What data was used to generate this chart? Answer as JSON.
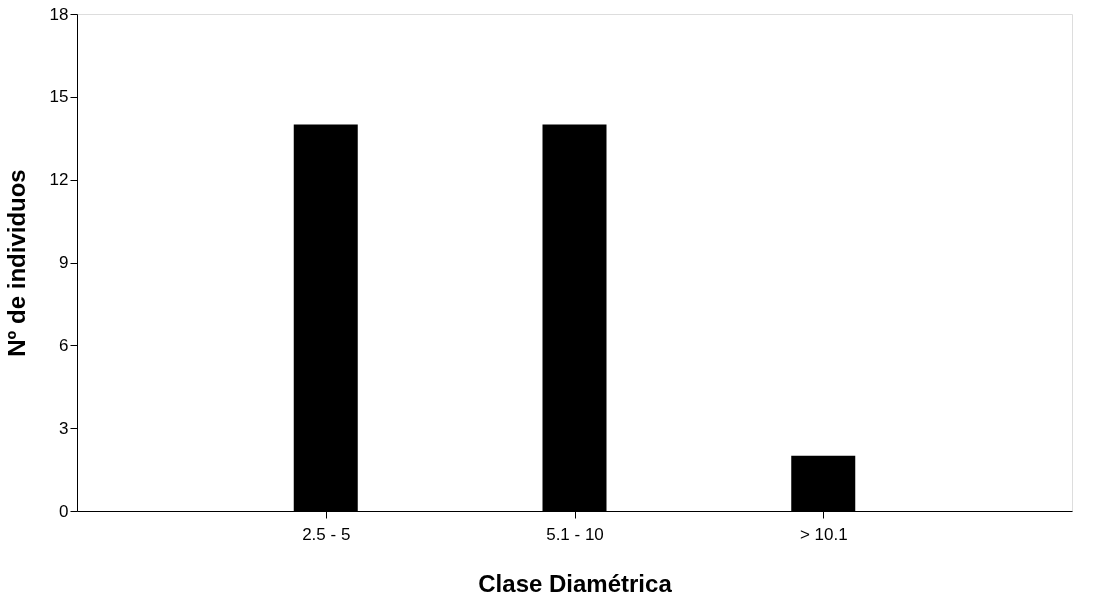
{
  "chart_data": {
    "type": "bar",
    "xlabel": "Clase Diamétrica",
    "ylabel": "Nº de individuos",
    "categories": [
      "2.5 - 5",
      "5.1 - 10",
      "> 10.1"
    ],
    "series": [
      {
        "color": "#000000",
        "values": [
          14,
          14,
          2
        ]
      }
    ],
    "ylim": [
      0,
      18
    ],
    "yticks": [
      0,
      3,
      6,
      9,
      12,
      15,
      18
    ],
    "grid": false,
    "legend": false
  }
}
